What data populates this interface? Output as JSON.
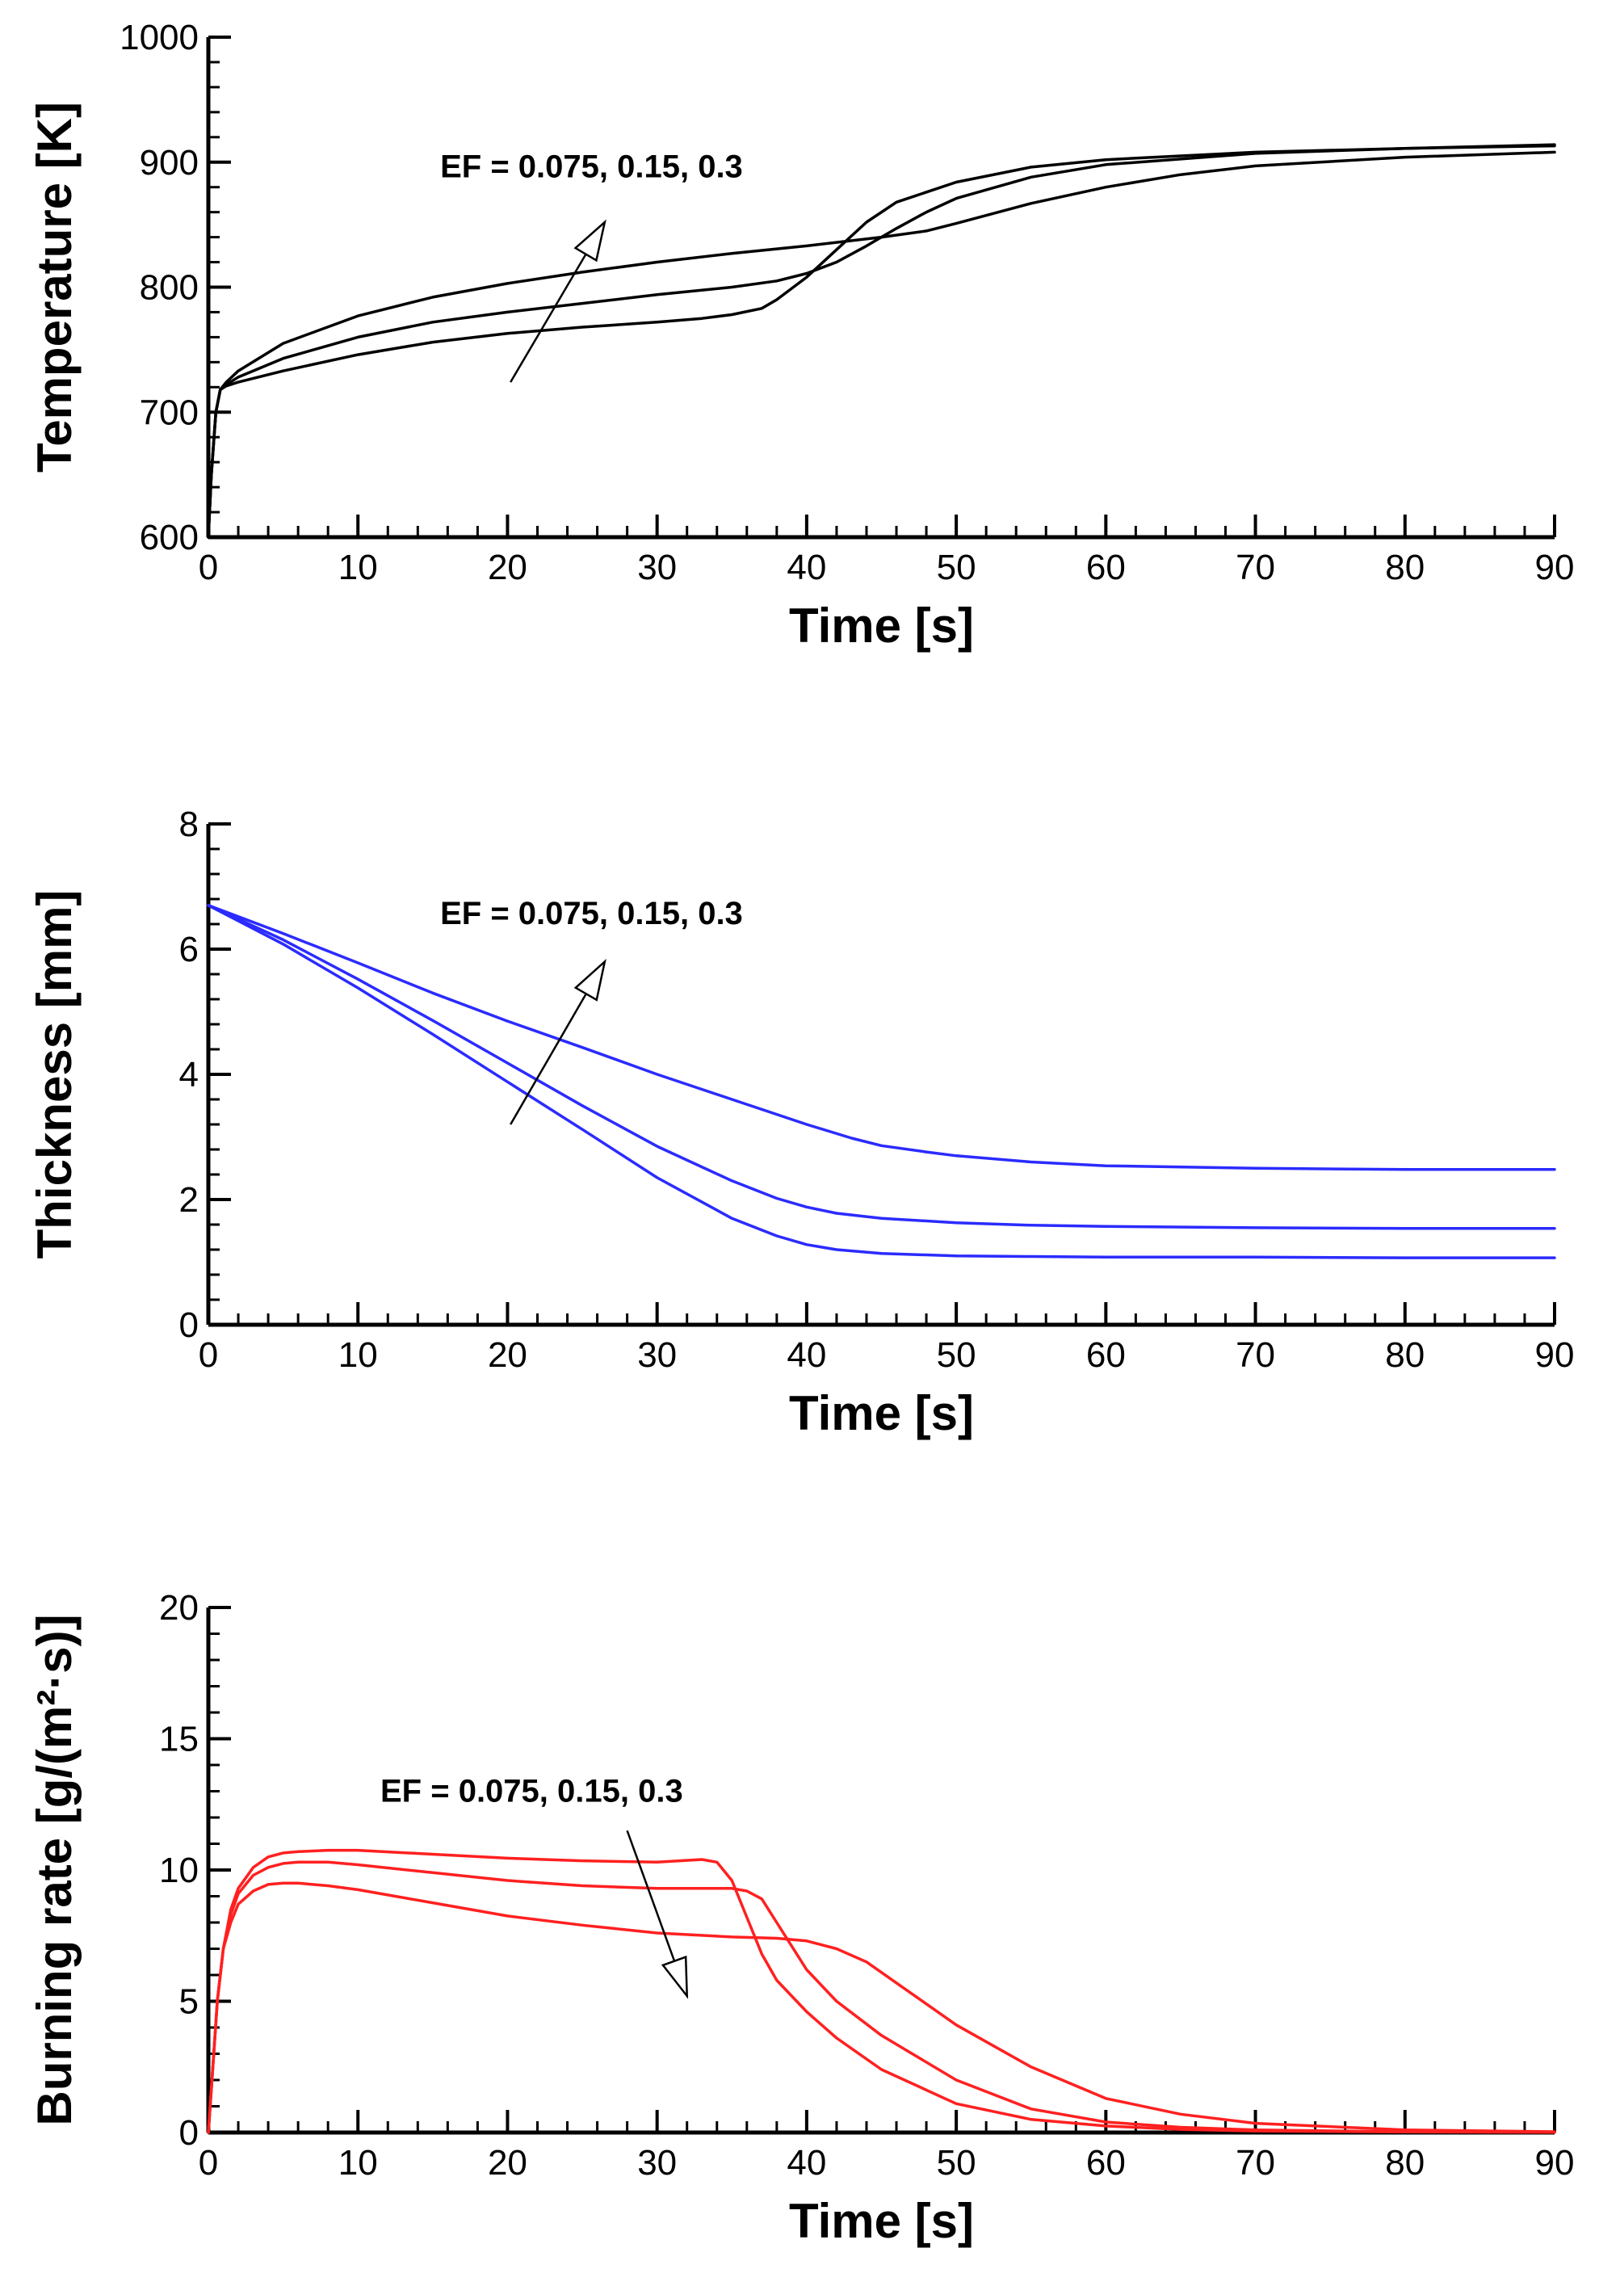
{
  "chart_data": [
    {
      "type": "line",
      "xlabel": "Time [s]",
      "ylabel": "Temperature [K]",
      "xlim": [
        0,
        90
      ],
      "ylim": [
        600,
        1000
      ],
      "xticks": [
        0,
        10,
        20,
        30,
        40,
        50,
        60,
        70,
        80,
        90
      ],
      "yticks": [
        600,
        700,
        800,
        900,
        1000
      ],
      "color": "#000000",
      "annotation": {
        "text": "EF = 0.075, 0.15, 0.3",
        "arrow_from": [
          20.2,
          724
        ],
        "arrow_to": [
          26.5,
          852
        ],
        "text_at": [
          15.5,
          888
        ]
      },
      "series": [
        {
          "name": "EF = 0.075",
          "x": [
            0,
            0.2,
            0.5,
            0.8,
            1.2,
            2,
            5,
            10,
            15,
            20,
            25,
            30,
            33,
            35,
            37,
            38,
            40,
            42,
            44,
            46,
            50,
            55,
            60,
            70,
            80,
            90
          ],
          "y": [
            600,
            650,
            700,
            718,
            721,
            724,
            733,
            746,
            756,
            763,
            768,
            772,
            775,
            778,
            783,
            790,
            808,
            830,
            852,
            868,
            884,
            896,
            902,
            908,
            911,
            913
          ]
        },
        {
          "name": "EF = 0.15",
          "x": [
            0,
            0.2,
            0.5,
            0.8,
            1.2,
            2,
            5,
            10,
            15,
            20,
            25,
            30,
            35,
            38,
            40,
            42,
            44,
            46,
            48,
            50,
            55,
            60,
            70,
            80,
            90
          ],
          "y": [
            600,
            650,
            700,
            718,
            722,
            728,
            743,
            760,
            772,
            780,
            787,
            794,
            800,
            805,
            811,
            820,
            833,
            847,
            860,
            871,
            888,
            898,
            907,
            911,
            914
          ]
        },
        {
          "name": "EF = 0.3",
          "x": [
            0,
            0.2,
            0.5,
            0.8,
            1.2,
            2,
            5,
            10,
            15,
            20,
            25,
            30,
            35,
            40,
            45,
            48,
            50,
            55,
            60,
            65,
            70,
            80,
            90
          ],
          "y": [
            600,
            650,
            700,
            718,
            724,
            733,
            755,
            777,
            792,
            803,
            812,
            820,
            827,
            833,
            840,
            845,
            851,
            867,
            880,
            890,
            897,
            904,
            908
          ]
        }
      ]
    },
    {
      "type": "line",
      "xlabel": "Time [s]",
      "ylabel": "Thickness [mm]",
      "xlim": [
        0,
        90
      ],
      "ylim": [
        0,
        8
      ],
      "xticks": [
        0,
        10,
        20,
        30,
        40,
        50,
        60,
        70,
        80,
        90
      ],
      "yticks": [
        0,
        2,
        4,
        6,
        8
      ],
      "color": "#2b2bff",
      "annotation": {
        "text": "EF = 0.075, 0.15, 0.3",
        "arrow_from": [
          20.2,
          3.2
        ],
        "arrow_to": [
          26.5,
          5.8
        ],
        "text_at": [
          15.5,
          6.4
        ]
      },
      "series": [
        {
          "name": "EF = 0.075",
          "x": [
            0,
            5,
            10,
            15,
            20,
            25,
            30,
            35,
            38,
            40,
            42,
            45,
            50,
            55,
            60,
            70,
            80,
            90
          ],
          "y": [
            6.7,
            6.08,
            5.38,
            4.64,
            3.88,
            3.12,
            2.35,
            1.7,
            1.42,
            1.28,
            1.2,
            1.14,
            1.1,
            1.09,
            1.08,
            1.08,
            1.07,
            1.07
          ]
        },
        {
          "name": "EF = 0.15",
          "x": [
            0,
            5,
            10,
            15,
            20,
            25,
            30,
            35,
            38,
            40,
            42,
            45,
            50,
            55,
            60,
            70,
            80,
            90
          ],
          "y": [
            6.7,
            6.15,
            5.52,
            4.86,
            4.18,
            3.5,
            2.85,
            2.3,
            2.02,
            1.88,
            1.78,
            1.7,
            1.63,
            1.59,
            1.57,
            1.55,
            1.54,
            1.54
          ]
        },
        {
          "name": "EF = 0.3",
          "x": [
            0,
            5,
            10,
            15,
            20,
            25,
            30,
            35,
            40,
            43,
            45,
            48,
            50,
            55,
            60,
            70,
            80,
            90
          ],
          "y": [
            6.7,
            6.25,
            5.78,
            5.3,
            4.85,
            4.43,
            4.0,
            3.6,
            3.2,
            2.98,
            2.86,
            2.76,
            2.7,
            2.6,
            2.54,
            2.5,
            2.48,
            2.48
          ]
        }
      ]
    },
    {
      "type": "line",
      "xlabel": "Time [s]",
      "ylabel": "Burning rate [g/(m²·s)]",
      "xlim": [
        0,
        90
      ],
      "ylim": [
        0,
        20
      ],
      "xticks": [
        0,
        10,
        20,
        30,
        40,
        50,
        60,
        70,
        80,
        90
      ],
      "yticks": [
        0,
        5,
        10,
        15,
        20
      ],
      "color": "#ff2020",
      "annotation": {
        "text": "EF = 0.075, 0.15, 0.3",
        "arrow_from": [
          28.0,
          11.5
        ],
        "arrow_to": [
          32.0,
          5.2
        ],
        "text_at": [
          11.5,
          12.6
        ]
      },
      "series": [
        {
          "name": "EF = 0.075",
          "x": [
            0,
            0.3,
            0.6,
            1,
            1.5,
            2,
            3,
            4,
            5,
            6,
            8,
            10,
            15,
            20,
            25,
            30,
            33,
            34,
            35,
            36,
            37,
            38,
            40,
            42,
            45,
            50,
            55,
            60,
            65,
            70,
            80,
            90
          ],
          "y": [
            0,
            2.5,
            5,
            7,
            8.5,
            9.3,
            10.1,
            10.5,
            10.65,
            10.7,
            10.75,
            10.75,
            10.6,
            10.45,
            10.35,
            10.3,
            10.4,
            10.3,
            9.6,
            8.2,
            6.8,
            5.8,
            4.6,
            3.6,
            2.4,
            1.1,
            0.5,
            0.25,
            0.12,
            0.06,
            0.02,
            0.01
          ]
        },
        {
          "name": "EF = 0.15",
          "x": [
            0,
            0.3,
            0.6,
            1,
            1.5,
            2,
            3,
            4,
            5,
            6,
            8,
            10,
            15,
            20,
            25,
            30,
            35,
            36,
            37,
            38,
            40,
            42,
            45,
            50,
            55,
            60,
            65,
            70,
            80,
            90
          ],
          "y": [
            0,
            2.5,
            5,
            7,
            8.3,
            9.1,
            9.8,
            10.1,
            10.25,
            10.3,
            10.3,
            10.2,
            9.9,
            9.6,
            9.4,
            9.3,
            9.3,
            9.2,
            8.9,
            8.0,
            6.2,
            5.0,
            3.7,
            2.0,
            0.9,
            0.4,
            0.2,
            0.1,
            0.03,
            0.01
          ]
        },
        {
          "name": "EF = 0.3",
          "x": [
            0,
            0.3,
            0.6,
            1,
            1.5,
            2,
            3,
            4,
            5,
            6,
            8,
            10,
            15,
            20,
            25,
            30,
            35,
            38,
            40,
            42,
            44,
            46,
            48,
            50,
            55,
            60,
            65,
            70,
            80,
            90
          ],
          "y": [
            0,
            2.5,
            5,
            7,
            8.0,
            8.7,
            9.2,
            9.45,
            9.5,
            9.5,
            9.4,
            9.25,
            8.75,
            8.25,
            7.9,
            7.6,
            7.45,
            7.4,
            7.3,
            7.0,
            6.5,
            5.7,
            4.9,
            4.1,
            2.5,
            1.3,
            0.7,
            0.35,
            0.1,
            0.03
          ]
        }
      ]
    }
  ]
}
